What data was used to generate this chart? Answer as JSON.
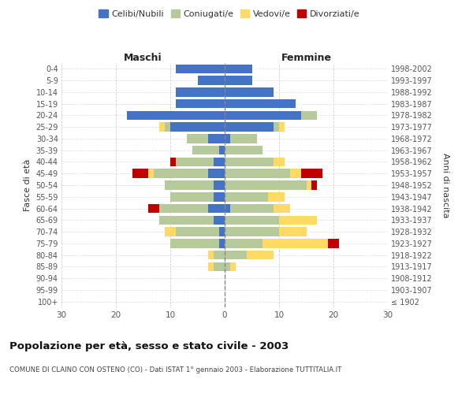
{
  "age_groups": [
    "100+",
    "95-99",
    "90-94",
    "85-89",
    "80-84",
    "75-79",
    "70-74",
    "65-69",
    "60-64",
    "55-59",
    "50-54",
    "45-49",
    "40-44",
    "35-39",
    "30-34",
    "25-29",
    "20-24",
    "15-19",
    "10-14",
    "5-9",
    "0-4"
  ],
  "birth_years": [
    "≤ 1902",
    "1903-1907",
    "1908-1912",
    "1913-1917",
    "1918-1922",
    "1923-1927",
    "1928-1932",
    "1933-1937",
    "1938-1942",
    "1943-1947",
    "1948-1952",
    "1953-1957",
    "1958-1962",
    "1963-1967",
    "1968-1972",
    "1973-1977",
    "1978-1982",
    "1983-1987",
    "1988-1992",
    "1993-1997",
    "1998-2002"
  ],
  "colors": {
    "celibi": "#4472C4",
    "coniugati": "#B5C99A",
    "vedovi": "#FFD966",
    "divorziati": "#C00000"
  },
  "males": {
    "celibi": [
      0,
      0,
      0,
      0,
      0,
      1,
      1,
      2,
      3,
      2,
      2,
      3,
      2,
      1,
      3,
      10,
      18,
      9,
      9,
      5,
      9
    ],
    "coniugati": [
      0,
      0,
      0,
      2,
      2,
      9,
      8,
      10,
      9,
      8,
      9,
      10,
      7,
      5,
      4,
      1,
      0,
      0,
      0,
      0,
      0
    ],
    "vedovi": [
      0,
      0,
      0,
      1,
      1,
      0,
      2,
      0,
      0,
      0,
      0,
      1,
      0,
      0,
      0,
      1,
      0,
      0,
      0,
      0,
      0
    ],
    "divorziati": [
      0,
      0,
      0,
      0,
      0,
      0,
      0,
      0,
      2,
      0,
      0,
      3,
      1,
      0,
      0,
      0,
      0,
      0,
      0,
      0,
      0
    ]
  },
  "females": {
    "celibi": [
      0,
      0,
      0,
      0,
      0,
      0,
      0,
      0,
      1,
      0,
      0,
      0,
      0,
      0,
      1,
      9,
      14,
      13,
      9,
      5,
      5
    ],
    "coniugati": [
      0,
      0,
      0,
      1,
      4,
      7,
      10,
      10,
      8,
      8,
      15,
      12,
      9,
      7,
      5,
      1,
      3,
      0,
      0,
      0,
      0
    ],
    "vedovi": [
      0,
      0,
      0,
      1,
      5,
      12,
      5,
      7,
      3,
      3,
      1,
      2,
      2,
      0,
      0,
      1,
      0,
      0,
      0,
      0,
      0
    ],
    "divorziati": [
      0,
      0,
      0,
      0,
      0,
      2,
      0,
      0,
      0,
      0,
      1,
      4,
      0,
      0,
      0,
      0,
      0,
      0,
      0,
      0,
      0
    ]
  },
  "xlim": 30,
  "title": "Popolazione per età, sesso e stato civile - 2003",
  "subtitle": "COMUNE DI CLAINO CON OSTENO (CO) - Dati ISTAT 1° gennaio 2003 - Elaborazione TUTTITALIA.IT",
  "ylabel_left": "Fasce di età",
  "ylabel_right": "Anni di nascita",
  "xlabel_left": "Maschi",
  "xlabel_right": "Femmine",
  "legend_labels": [
    "Celibi/Nubili",
    "Coniugati/e",
    "Vedovi/e",
    "Divorziati/e"
  ],
  "bg_color": "#ffffff",
  "grid_color": "#cccccc"
}
